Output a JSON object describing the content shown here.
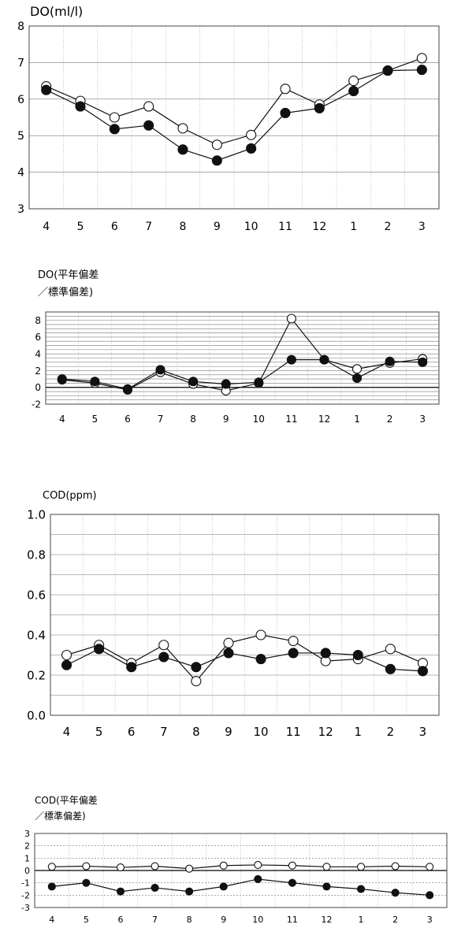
{
  "chart_data": [
    {
      "type": "line",
      "title": "DO(ml/l)",
      "subtitle": "",
      "categories": [
        "4",
        "5",
        "6",
        "7",
        "8",
        "9",
        "10",
        "11",
        "12",
        "1",
        "2",
        "3"
      ],
      "ylim": [
        3,
        8
      ],
      "yticks": [
        "3",
        "4",
        "5",
        "6",
        "7",
        "8"
      ],
      "grid": true,
      "series": [
        {
          "marker": "open",
          "values": [
            6.35,
            5.95,
            5.5,
            5.8,
            5.2,
            4.75,
            5.02,
            6.28,
            5.85,
            6.5,
            6.78,
            7.12
          ]
        },
        {
          "marker": "filled",
          "values": [
            6.25,
            5.8,
            5.18,
            5.28,
            4.62,
            4.32,
            4.65,
            5.62,
            5.75,
            6.22,
            6.78,
            6.8
          ]
        }
      ]
    },
    {
      "type": "line",
      "title": "DO(平年偏差",
      "subtitle": "／標準偏差)",
      "categories": [
        "4",
        "5",
        "6",
        "7",
        "8",
        "9",
        "10",
        "11",
        "12",
        "1",
        "2",
        "3"
      ],
      "ylim": [
        -2,
        9
      ],
      "yticks": [
        "-2",
        "0",
        "2",
        "4",
        "6",
        "8"
      ],
      "grid": true,
      "series": [
        {
          "marker": "open",
          "values": [
            0.9,
            0.5,
            -0.3,
            1.8,
            0.4,
            -0.4,
            0.5,
            8.2,
            3.3,
            2.2,
            2.9,
            3.4
          ]
        },
        {
          "marker": "filled",
          "values": [
            1.0,
            0.7,
            -0.2,
            2.1,
            0.7,
            0.4,
            0.6,
            3.3,
            3.3,
            1.1,
            3.1,
            3.0
          ]
        }
      ]
    },
    {
      "type": "line",
      "title": "COD(ppm)",
      "subtitle": "",
      "categories": [
        "4",
        "5",
        "6",
        "7",
        "8",
        "9",
        "10",
        "11",
        "12",
        "1",
        "2",
        "3"
      ],
      "ylim": [
        0,
        1
      ],
      "yticks": [
        "0.0",
        "0.2",
        "0.4",
        "0.6",
        "0.8",
        "1.0"
      ],
      "grid": true,
      "series": [
        {
          "marker": "open",
          "values": [
            0.3,
            0.35,
            0.26,
            0.35,
            0.17,
            0.36,
            0.4,
            0.37,
            0.27,
            0.28,
            0.33,
            0.26
          ]
        },
        {
          "marker": "filled",
          "values": [
            0.25,
            0.33,
            0.24,
            0.29,
            0.24,
            0.31,
            0.28,
            0.31,
            0.31,
            0.3,
            0.23,
            0.22
          ]
        }
      ]
    },
    {
      "type": "line",
      "title": "COD(平年偏差",
      "subtitle": "／標準偏差)",
      "categories": [
        "4",
        "5",
        "6",
        "7",
        "8",
        "9",
        "10",
        "11",
        "12",
        "1",
        "2",
        "3"
      ],
      "ylim": [
        -3,
        3
      ],
      "yticks": [
        "-3",
        "-2",
        "-1",
        "0",
        "1",
        "2",
        "3"
      ],
      "grid": true,
      "series": [
        {
          "marker": "open",
          "values": [
            0.3,
            0.35,
            0.25,
            0.35,
            0.15,
            0.4,
            0.45,
            0.4,
            0.3,
            0.3,
            0.35,
            0.3
          ]
        },
        {
          "marker": "filled",
          "values": [
            -1.3,
            -1.0,
            -1.7,
            -1.4,
            -1.7,
            -1.3,
            -0.7,
            -1.0,
            -1.3,
            -1.5,
            -1.8,
            -2.0
          ]
        }
      ]
    }
  ]
}
